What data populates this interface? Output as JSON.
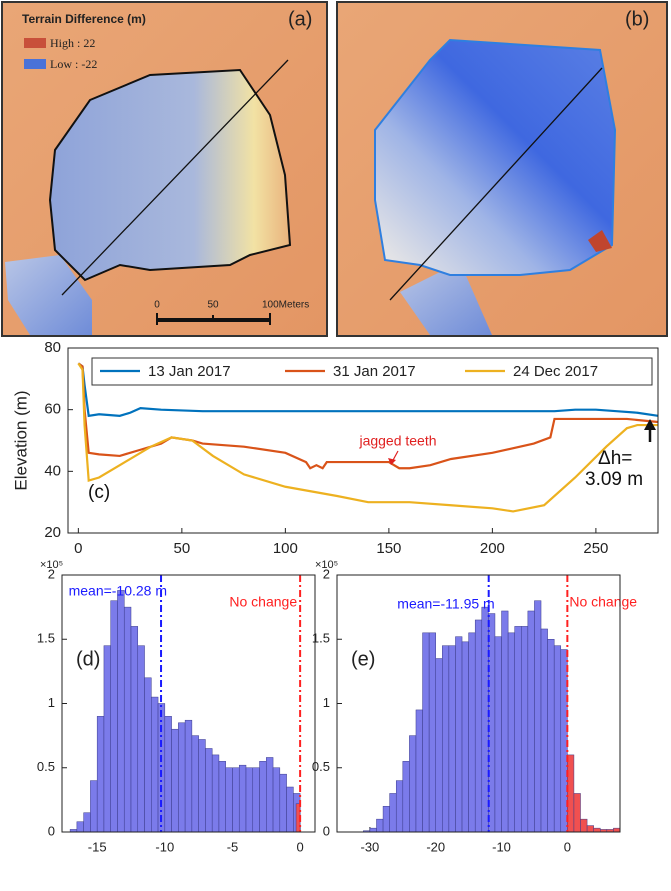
{
  "maps": {
    "panels": [
      {
        "label": "(a)"
      },
      {
        "label": "(b)"
      }
    ],
    "legend": {
      "title": "Terrain Difference (m)",
      "high": "High : 22",
      "low": "Low : -22"
    },
    "scale_bar": {
      "labels": [
        "0",
        "50",
        "100Meters"
      ]
    }
  },
  "chart_data": [
    {
      "type": "line",
      "ylabel": "Elevation (m)",
      "xlim": [
        -5,
        280
      ],
      "xticks": [
        0,
        50,
        100,
        150,
        200,
        250
      ],
      "ylim": [
        20,
        80
      ],
      "yticks": [
        20,
        40,
        60,
        80
      ],
      "annotations": [
        "(c)",
        "jagged teeth",
        "Δh=",
        "3.09 m"
      ],
      "series": [
        {
          "name": "13 Jan 2017",
          "color": "#0072BD",
          "x": [
            0,
            2,
            3,
            5,
            10,
            20,
            25,
            30,
            40,
            60,
            100,
            150,
            200,
            230,
            240,
            250,
            260,
            270,
            280
          ],
          "values": [
            75,
            74,
            68,
            58,
            58.5,
            58,
            59,
            60.5,
            60,
            59.5,
            59.5,
            59.5,
            59.5,
            59.5,
            60,
            60,
            59.5,
            59,
            58
          ]
        },
        {
          "name": "31 Jan 2017",
          "color": "#D95319",
          "x": [
            0,
            2,
            3,
            5,
            10,
            20,
            25,
            30,
            40,
            45,
            55,
            60,
            80,
            100,
            110,
            112,
            115,
            118,
            120,
            130,
            150,
            155,
            160,
            170,
            180,
            200,
            220,
            228,
            230,
            250,
            265,
            280
          ],
          "values": [
            75,
            74,
            60,
            46,
            45.5,
            45,
            46,
            47,
            49,
            51,
            50,
            49,
            48,
            46,
            43,
            41,
            42,
            41,
            43,
            43,
            43,
            41,
            41,
            42,
            44,
            46,
            49,
            51,
            57,
            57,
            57,
            56
          ]
        },
        {
          "name": "24 Dec 2017",
          "color": "#EDB120",
          "x": [
            0,
            2,
            3,
            5,
            10,
            20,
            35,
            45,
            55,
            65,
            80,
            100,
            125,
            140,
            160,
            180,
            200,
            210,
            225,
            240,
            255,
            265,
            270,
            280
          ],
          "values": [
            75,
            73,
            55,
            37,
            38,
            42,
            48,
            51,
            50,
            45,
            39,
            35,
            32,
            30,
            30,
            29,
            28,
            27,
            29,
            38,
            48,
            54,
            55,
            55
          ]
        }
      ]
    },
    {
      "type": "histogram",
      "label": "(d)",
      "y_multiplier": "×10⁵",
      "xlim": [
        -17.6,
        1.1
      ],
      "xticks": [
        -15,
        -10,
        -5,
        0
      ],
      "ylim": [
        0,
        2
      ],
      "yticks": [
        0,
        0.5,
        1,
        1.5,
        2
      ],
      "bars": [
        {
          "color": "#7b7bea",
          "bins": [
            -17,
            -16.5,
            -16,
            -15.5,
            -15,
            -14.5,
            -14,
            -13.5,
            -13,
            -12.5,
            -12,
            -11.5,
            -11,
            -10.5,
            -10,
            -9.5,
            -9,
            -8.5,
            -8,
            -7.5,
            -7,
            -6.5,
            -6,
            -5.5,
            -5,
            -4.5,
            -4,
            -3.5,
            -3,
            -2.5,
            -2,
            -1.5,
            -1,
            -0.5,
            0
          ],
          "values": [
            0.02,
            0.08,
            0.15,
            0.4,
            0.9,
            1.45,
            1.8,
            1.88,
            1.75,
            1.6,
            1.45,
            1.2,
            1.05,
            1.0,
            0.9,
            0.8,
            0.85,
            0.87,
            0.75,
            0.72,
            0.65,
            0.6,
            0.55,
            0.5,
            0.5,
            0.52,
            0.5,
            0.5,
            0.55,
            0.58,
            0.5,
            0.45,
            0.35,
            0.3
          ]
        },
        {
          "color": "#f05050",
          "bins": [
            -0.3,
            0
          ],
          "values": [
            0.22
          ]
        }
      ],
      "vlines": [
        {
          "value": -10.28,
          "label": "mean=-10.28 m",
          "color": "#1a1aff"
        },
        {
          "value": 0,
          "label": "No change",
          "color": "#ff2020"
        }
      ]
    },
    {
      "type": "histogram",
      "label": "(e)",
      "y_multiplier": "×10⁵",
      "xlim": [
        -35,
        8
      ],
      "xticks": [
        -30,
        -20,
        -10,
        0
      ],
      "ylim": [
        0,
        2
      ],
      "yticks": [
        0,
        0.5,
        1,
        1.5,
        2
      ],
      "bars": [
        {
          "color": "#7b7bea",
          "bins": [
            -31,
            -30,
            -29,
            -28,
            -27,
            -26,
            -25,
            -24,
            -23,
            -22,
            -21,
            -20,
            -19,
            -18,
            -17,
            -16,
            -15,
            -14,
            -13,
            -12,
            -11,
            -10,
            -9,
            -8,
            -7,
            -6,
            -5,
            -4,
            -3,
            -2,
            -1,
            0
          ],
          "values": [
            0.01,
            0.03,
            0.1,
            0.2,
            0.3,
            0.4,
            0.55,
            0.75,
            0.95,
            1.55,
            1.55,
            1.35,
            1.45,
            1.45,
            1.52,
            1.48,
            1.55,
            1.65,
            1.75,
            1.7,
            1.52,
            1.72,
            1.55,
            1.6,
            1.6,
            1.72,
            1.8,
            1.58,
            1.5,
            1.45,
            1.42
          ]
        },
        {
          "color": "#f05050",
          "bins": [
            0,
            1,
            2,
            3,
            4,
            5,
            6,
            7,
            8
          ],
          "values": [
            0.6,
            0.3,
            0.1,
            0.05,
            0.03,
            0.02,
            0.02,
            0.03
          ]
        }
      ],
      "vlines": [
        {
          "value": -11.95,
          "label": "mean=-11.95 m",
          "color": "#1a1aff"
        },
        {
          "value": 0,
          "label": "No change",
          "color": "#ff2020"
        }
      ]
    }
  ]
}
